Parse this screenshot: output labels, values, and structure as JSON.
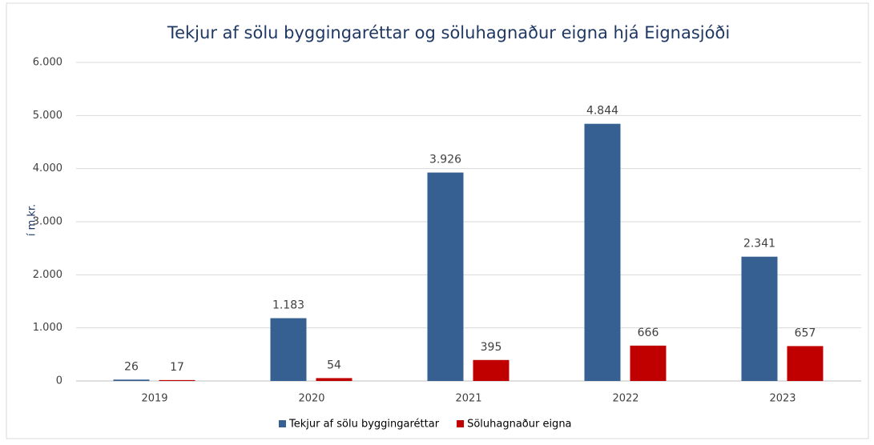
{
  "chart_data": {
    "type": "bar",
    "title": "Tekjur af sölu byggingaréttar og söluhagnaður eigna hjá Eignasjóði",
    "y_label": "í m.kr.",
    "categories": [
      "2019",
      "2020",
      "2021",
      "2022",
      "2023"
    ],
    "series": [
      {
        "name": "Tekjur af sölu byggingaréttar",
        "color": "#376092",
        "values": [
          26,
          1183,
          3926,
          4844,
          2341
        ],
        "value_labels": [
          "26",
          "1.183",
          "3.926",
          "4.844",
          "2.341"
        ]
      },
      {
        "name": "Söluhagnaður eigna",
        "color": "#c00000",
        "values": [
          17,
          54,
          395,
          666,
          657
        ]
      }
    ],
    "ylim": [
      0,
      6000
    ],
    "yticks": [
      0,
      {
        "value": 1000,
        "label": "1.000"
      },
      {
        "value": 2000,
        "label": "2.000"
      },
      {
        "value": 3000,
        "label": "3.000"
      },
      {
        "value": 4000,
        "label": "4.000"
      },
      {
        "value": 5000,
        "label": "5.000"
      },
      {
        "value": 6000,
        "label": "6.000"
      }
    ],
    "grid": true,
    "legend": "bottom"
  }
}
